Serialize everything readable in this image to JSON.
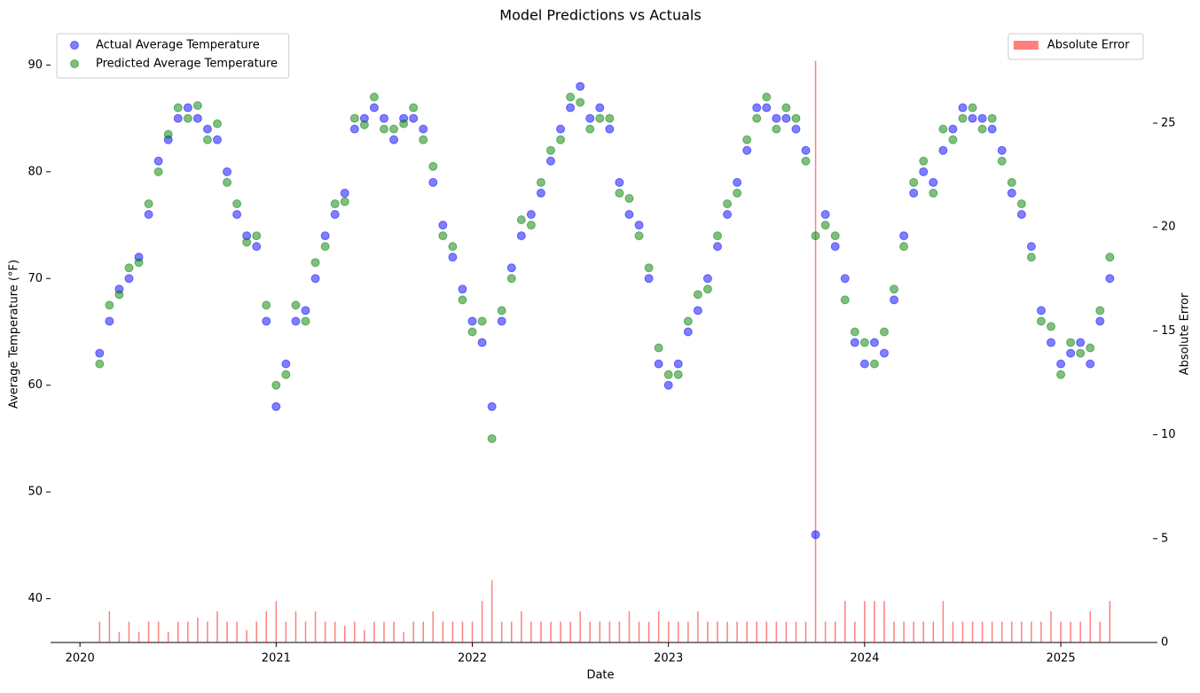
{
  "chart_data": {
    "type": "scatter",
    "title": "Model Predictions vs Actuals",
    "x_label": "Date",
    "y_label": "Average Temperature (°F)",
    "y2_label": "Absolute Error",
    "x": [
      2020.1,
      2020.15,
      2020.2,
      2020.25,
      2020.3,
      2020.35,
      2020.4,
      2020.45,
      2020.5,
      2020.55,
      2020.6,
      2020.65,
      2020.7,
      2020.75,
      2020.8,
      2020.85,
      2020.9,
      2020.95,
      2021.0,
      2021.05,
      2021.1,
      2021.15,
      2021.2,
      2021.25,
      2021.3,
      2021.35,
      2021.4,
      2021.45,
      2021.5,
      2021.55,
      2021.6,
      2021.65,
      2021.7,
      2021.75,
      2021.8,
      2021.85,
      2021.9,
      2021.95,
      2022.0,
      2022.05,
      2022.1,
      2022.15,
      2022.2,
      2022.25,
      2022.3,
      2022.35,
      2022.4,
      2022.45,
      2022.5,
      2022.55,
      2022.6,
      2022.65,
      2022.7,
      2022.75,
      2022.8,
      2022.85,
      2022.9,
      2022.95,
      2023.0,
      2023.05,
      2023.1,
      2023.15,
      2023.2,
      2023.25,
      2023.3,
      2023.35,
      2023.4,
      2023.45,
      2023.5,
      2023.55,
      2023.6,
      2023.65,
      2023.7,
      2023.75,
      2023.8,
      2023.85,
      2023.9,
      2023.95,
      2024.0,
      2024.05,
      2024.1,
      2024.15,
      2024.2,
      2024.25,
      2024.3,
      2024.35,
      2024.4,
      2024.45,
      2024.5,
      2024.55,
      2024.6,
      2024.65,
      2024.7,
      2024.75,
      2024.8,
      2024.85,
      2024.9,
      2024.95,
      2025.0,
      2025.05,
      2025.1,
      2025.15,
      2025.2,
      2025.25
    ],
    "series": [
      {
        "name": "Actual Average Temperature",
        "type": "scatter",
        "color": "#0000ff",
        "values": [
          63,
          66,
          69,
          70,
          72,
          76,
          81,
          83,
          85,
          86,
          85,
          84,
          83,
          80,
          76,
          74,
          73,
          66,
          58,
          62,
          66,
          67,
          70,
          74,
          76,
          78,
          84,
          85,
          86,
          85,
          83,
          85,
          85,
          84,
          79,
          75,
          72,
          69,
          66,
          64,
          58,
          66,
          71,
          74,
          76,
          78,
          81,
          84,
          86,
          88,
          85,
          86,
          84,
          79,
          76,
          75,
          70,
          62,
          60,
          62,
          65,
          67,
          70,
          73,
          76,
          79,
          82,
          86,
          86,
          85,
          85,
          84,
          82,
          46,
          76,
          73,
          70,
          64,
          62,
          64,
          63,
          68,
          74,
          78,
          80,
          79,
          82,
          84,
          86,
          85,
          85,
          84,
          82,
          78,
          76,
          73,
          67,
          64,
          62,
          63,
          64,
          62,
          66,
          70
        ]
      },
      {
        "name": "Predicted Average Temperature",
        "type": "scatter",
        "color": "#008000",
        "values": [
          62,
          67.5,
          68.5,
          71,
          71.5,
          77,
          80,
          83.5,
          86,
          85,
          86.2,
          83,
          84.5,
          79,
          77,
          73.4,
          74,
          67.5,
          60,
          61,
          67.5,
          66,
          71.5,
          73,
          77,
          77.2,
          85,
          84.4,
          87,
          84,
          84,
          84.5,
          86,
          83,
          80.5,
          74,
          73,
          68,
          65,
          66,
          55,
          67,
          70,
          75.5,
          75,
          79,
          82,
          83,
          87,
          86.5,
          84,
          85,
          85,
          78,
          77.5,
          74,
          71,
          63.5,
          61,
          61,
          66,
          68.5,
          69,
          74,
          77,
          78,
          83,
          85,
          87,
          84,
          86,
          85,
          81,
          74,
          75,
          74,
          68,
          65,
          64,
          62,
          65,
          69,
          73,
          79,
          81,
          78,
          84,
          83,
          85,
          86,
          84,
          85,
          81,
          79,
          77,
          72,
          66,
          65.5,
          61,
          64,
          63,
          63.5,
          67,
          72
        ]
      },
      {
        "name": "Absolute Error",
        "type": "bar",
        "axis": "y2",
        "color": "#ff0000",
        "values": [
          1,
          1.5,
          0.5,
          1,
          0.5,
          1,
          1,
          0.5,
          1,
          1,
          1.2,
          1,
          1.5,
          1,
          1,
          0.6,
          1,
          1.5,
          2,
          1,
          1.5,
          1,
          1.5,
          1,
          1,
          0.8,
          1,
          0.6,
          1,
          1,
          1,
          0.5,
          1,
          1,
          1.5,
          1,
          1,
          1,
          1,
          2,
          3,
          1,
          1,
          1.5,
          1,
          1,
          1,
          1,
          1,
          1.5,
          1,
          1,
          1,
          1,
          1.5,
          1,
          1,
          1.5,
          1,
          1,
          1,
          1.5,
          1,
          1,
          1,
          1,
          1,
          1,
          1,
          1,
          1,
          1,
          1,
          28,
          1,
          1,
          2,
          1,
          2,
          2,
          2,
          1,
          1,
          1,
          1,
          1,
          2,
          1,
          1,
          1,
          1,
          1,
          1,
          1,
          1,
          1,
          1,
          1.5,
          1,
          1,
          1,
          1.5,
          1,
          2
        ]
      }
    ],
    "xlim": [
      2019.85,
      2025.47
    ],
    "xticks": [
      2020,
      2021,
      2022,
      2023,
      2024,
      2025
    ],
    "ylim": [
      35.9,
      93.6
    ],
    "yticks": [
      40,
      50,
      60,
      70,
      80,
      90
    ],
    "y2lim": [
      0,
      29.65
    ],
    "y2ticks": [
      0,
      5,
      10,
      15,
      20,
      25
    ],
    "opacity": 0.5,
    "legend": "upper left",
    "y2_legend": "upper right"
  }
}
